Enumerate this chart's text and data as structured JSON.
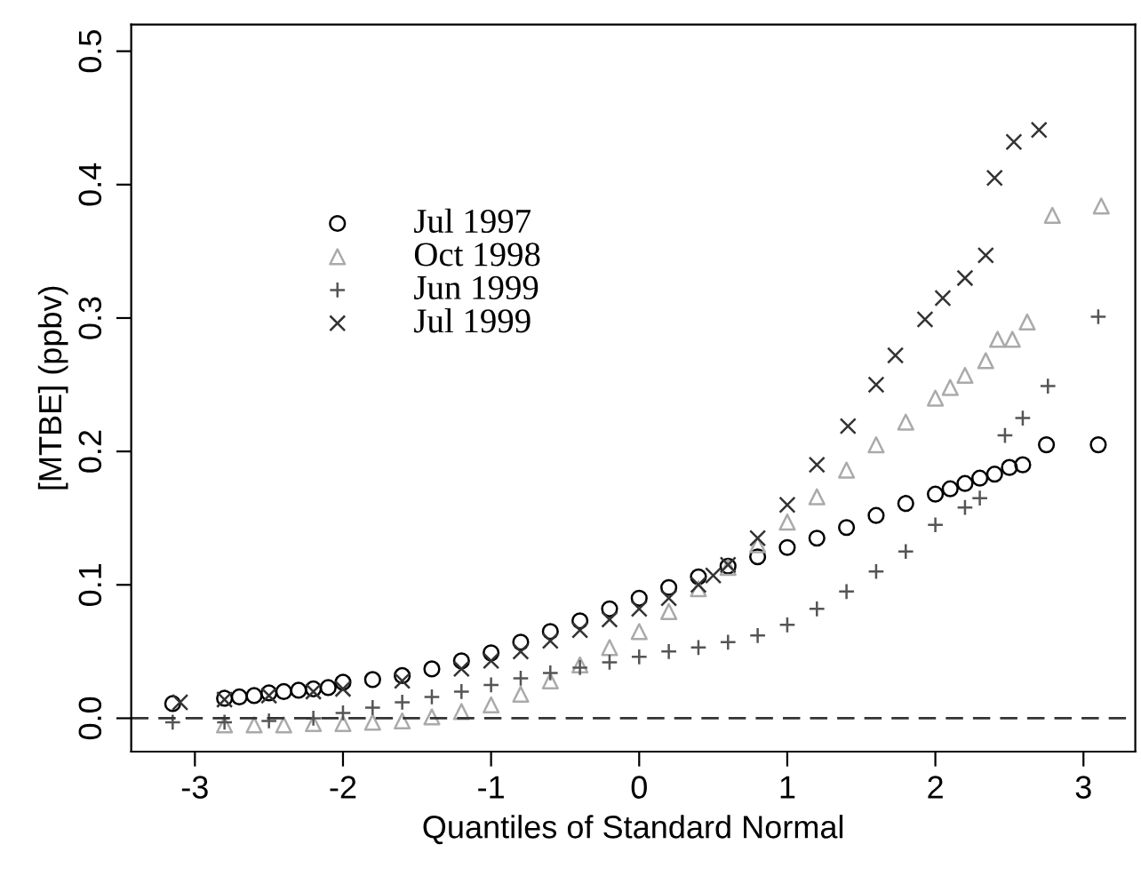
{
  "chart_data": {
    "type": "scatter",
    "xlabel": "Quantiles of Standard Normal",
    "ylabel": "[MTBE] (ppbv)",
    "xlim": [
      -3.43,
      3.35
    ],
    "ylim": [
      -0.025,
      0.52
    ],
    "xticks": [
      -3,
      -2,
      -1,
      0,
      1,
      2,
      3
    ],
    "yticks": [
      {
        "value": 0,
        "label": "0.0"
      },
      0.1,
      0.2,
      0.3,
      0.4,
      0.5
    ],
    "grid": false,
    "legend": "top left",
    "ref_lines": [
      {
        "axis": "y",
        "value": 0,
        "line_style": "dashed",
        "color": "#333333"
      }
    ],
    "series": [
      {
        "name": "Jul 1997",
        "color": "#000000",
        "marker": "circle",
        "x": [
          -3.15,
          -2.8,
          -2.7,
          -2.6,
          -2.5,
          -2.4,
          -2.3,
          -2.2,
          -2.1,
          -2.0,
          -1.8,
          -1.6,
          -1.4,
          -1.2,
          -1.0,
          -0.8,
          -0.6,
          -0.4,
          -0.2,
          0,
          0.2,
          0.4,
          0.6,
          0.8,
          1.0,
          1.2,
          1.4,
          1.6,
          1.8,
          2.0,
          2.1,
          2.2,
          2.3,
          2.4,
          2.5,
          2.59,
          2.75,
          3.1
        ],
        "values": [
          0.011,
          0.015,
          0.016,
          0.017,
          0.019,
          0.02,
          0.021,
          0.022,
          0.023,
          0.027,
          0.029,
          0.032,
          0.037,
          0.043,
          0.049,
          0.057,
          0.065,
          0.073,
          0.082,
          0.09,
          0.098,
          0.106,
          0.114,
          0.121,
          0.128,
          0.135,
          0.143,
          0.152,
          0.161,
          0.168,
          0.172,
          0.176,
          0.18,
          0.183,
          0.188,
          0.19,
          0.205,
          0.205
        ]
      },
      {
        "name": "Oct 1998",
        "color": "#aaaaaa",
        "marker": "triangle",
        "x": [
          -2.8,
          -2.6,
          -2.4,
          -2.2,
          -2.0,
          -1.8,
          -1.6,
          -1.4,
          -1.2,
          -1.0,
          -0.8,
          -0.6,
          -0.4,
          -0.2,
          0,
          0.2,
          0.4,
          0.6,
          0.8,
          1.0,
          1.2,
          1.4,
          1.6,
          1.8,
          2.0,
          2.1,
          2.2,
          2.34,
          2.42,
          2.52,
          2.62,
          2.79,
          3.12
        ],
        "values": [
          -0.005,
          -0.005,
          -0.005,
          -0.004,
          -0.004,
          -0.003,
          -0.002,
          0.001,
          0.005,
          0.01,
          0.018,
          0.028,
          0.04,
          0.053,
          0.065,
          0.08,
          0.097,
          0.113,
          0.13,
          0.147,
          0.166,
          0.186,
          0.205,
          0.222,
          0.24,
          0.248,
          0.257,
          0.268,
          0.284,
          0.284,
          0.297,
          0.377,
          0.384
        ]
      },
      {
        "name": "Jun 1999",
        "color": "#555555",
        "marker": "plus",
        "x": [
          -3.15,
          -2.8,
          -2.5,
          -2.2,
          -2.0,
          -1.8,
          -1.6,
          -1.4,
          -1.2,
          -1.0,
          -0.8,
          -0.6,
          -0.4,
          -0.2,
          0,
          0.2,
          0.4,
          0.6,
          0.8,
          1.0,
          1.2,
          1.4,
          1.6,
          1.8,
          2.0,
          2.2,
          2.3,
          2.47,
          2.59,
          2.76,
          3.1
        ],
        "values": [
          -0.003,
          -0.003,
          -0.002,
          0.0,
          0.004,
          0.008,
          0.012,
          0.016,
          0.02,
          0.025,
          0.03,
          0.034,
          0.038,
          0.042,
          0.046,
          0.05,
          0.053,
          0.057,
          0.062,
          0.07,
          0.082,
          0.095,
          0.11,
          0.125,
          0.145,
          0.158,
          0.165,
          0.212,
          0.225,
          0.249,
          0.301
        ]
      },
      {
        "name": "Jul 1999",
        "color": "#333333",
        "marker": "cross",
        "x": [
          -3.1,
          -2.8,
          -2.5,
          -2.2,
          -2.0,
          -1.6,
          -1.2,
          -1.0,
          -0.8,
          -0.6,
          -0.4,
          -0.2,
          0,
          0.2,
          0.4,
          0.5,
          0.6,
          0.8,
          1.0,
          1.2,
          1.41,
          1.6,
          1.73,
          1.93,
          2.05,
          2.2,
          2.34,
          2.4,
          2.53,
          2.7
        ],
        "values": [
          0.012,
          0.014,
          0.017,
          0.02,
          0.022,
          0.028,
          0.037,
          0.043,
          0.05,
          0.058,
          0.066,
          0.074,
          0.082,
          0.09,
          0.1,
          0.107,
          0.115,
          0.135,
          0.16,
          0.19,
          0.219,
          0.25,
          0.272,
          0.299,
          0.315,
          0.33,
          0.347,
          0.405,
          0.432,
          0.441
        ]
      }
    ]
  }
}
